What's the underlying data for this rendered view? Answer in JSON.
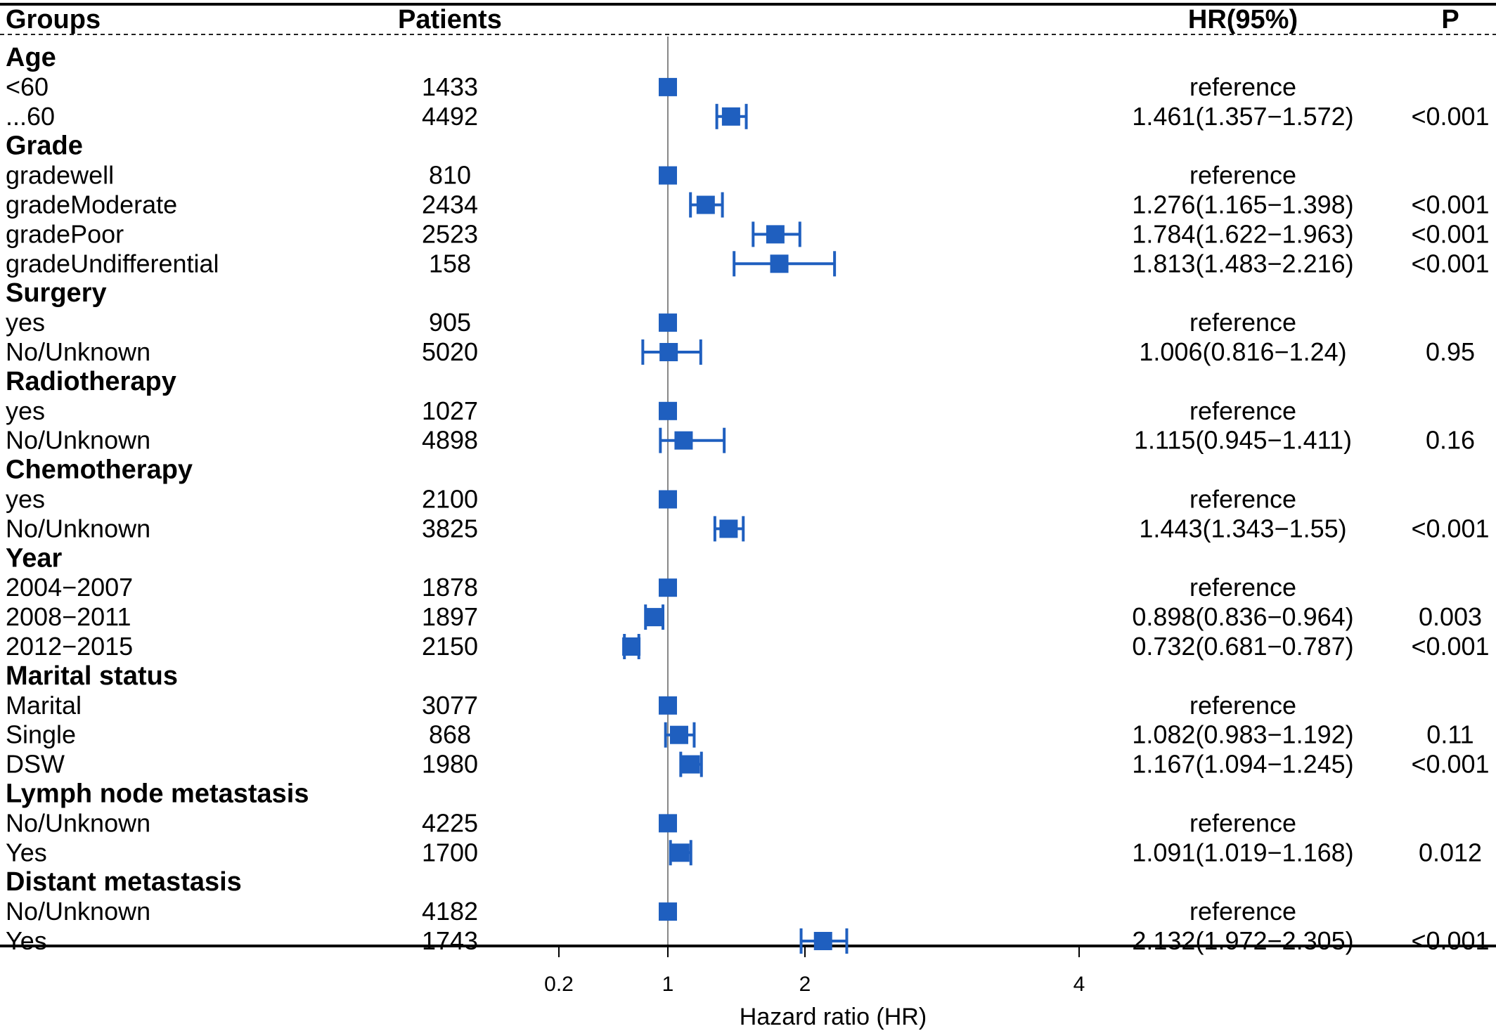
{
  "header": {
    "groups": "Groups",
    "patients": "Patients",
    "hr": "HR(95%)",
    "p": "P"
  },
  "chart_data": {
    "type": "forest",
    "title": "",
    "xlabel": "Hazard ratio (HR)",
    "x_ticks": [
      0.2,
      1,
      2,
      4
    ],
    "reference_line": 1,
    "colors": {
      "marker": "#1f5fbf",
      "reference_line": "#888888",
      "rules": "#000000"
    },
    "rows": [
      {
        "kind": "group",
        "label": "Age"
      },
      {
        "kind": "item",
        "label": "<60",
        "n": "1433",
        "hr_text": "reference",
        "p": "",
        "hr": 1,
        "lo": null,
        "hi": null
      },
      {
        "kind": "item",
        "label": "...60",
        "n": "4492",
        "hr_text": "1.461(1.357−1.572)",
        "p": "<0.001",
        "hr": 1.461,
        "lo": 1.357,
        "hi": 1.572
      },
      {
        "kind": "group",
        "label": "Grade"
      },
      {
        "kind": "item",
        "label": "gradewell",
        "n": "810",
        "hr_text": "reference",
        "p": "",
        "hr": 1,
        "lo": null,
        "hi": null
      },
      {
        "kind": "item",
        "label": "gradeModerate",
        "n": "2434",
        "hr_text": "1.276(1.165−1.398)",
        "p": "<0.001",
        "hr": 1.276,
        "lo": 1.165,
        "hi": 1.398
      },
      {
        "kind": "item",
        "label": "gradePoor",
        "n": "2523",
        "hr_text": "1.784(1.622−1.963)",
        "p": "<0.001",
        "hr": 1.784,
        "lo": 1.622,
        "hi": 1.963
      },
      {
        "kind": "item",
        "label": "gradeUndifferential",
        "n": "158",
        "hr_text": "1.813(1.483−2.216)",
        "p": "<0.001",
        "hr": 1.813,
        "lo": 1.483,
        "hi": 2.216
      },
      {
        "kind": "group",
        "label": "Surgery"
      },
      {
        "kind": "item",
        "label": "yes",
        "n": "905",
        "hr_text": "reference",
        "p": "",
        "hr": 1,
        "lo": null,
        "hi": null
      },
      {
        "kind": "item",
        "label": "No/Unknown",
        "n": "5020",
        "hr_text": "1.006(0.816−1.24)",
        "p": "0.95",
        "hr": 1.006,
        "lo": 0.816,
        "hi": 1.24
      },
      {
        "kind": "group",
        "label": "Radiotherapy"
      },
      {
        "kind": "item",
        "label": "yes",
        "n": "1027",
        "hr_text": "reference",
        "p": "",
        "hr": 1,
        "lo": null,
        "hi": null
      },
      {
        "kind": "item",
        "label": "No/Unknown",
        "n": "4898",
        "hr_text": "1.115(0.945−1.411)",
        "p": "0.16",
        "hr": 1.115,
        "lo": 0.945,
        "hi": 1.411
      },
      {
        "kind": "group",
        "label": "Chemotherapy"
      },
      {
        "kind": "item",
        "label": "yes",
        "n": "2100",
        "hr_text": "reference",
        "p": "",
        "hr": 1,
        "lo": null,
        "hi": null
      },
      {
        "kind": "item",
        "label": "No/Unknown",
        "n": "3825",
        "hr_text": "1.443(1.343−1.55)",
        "p": "<0.001",
        "hr": 1.443,
        "lo": 1.343,
        "hi": 1.55
      },
      {
        "kind": "group",
        "label": "Year"
      },
      {
        "kind": "item",
        "label": "2004−2007",
        "n": "1878",
        "hr_text": "reference",
        "p": "",
        "hr": 1,
        "lo": null,
        "hi": null
      },
      {
        "kind": "item",
        "label": "2008−2011",
        "n": "1897",
        "hr_text": "0.898(0.836−0.964)",
        "p": "0.003",
        "hr": 0.898,
        "lo": 0.836,
        "hi": 0.964
      },
      {
        "kind": "item",
        "label": "2012−2015",
        "n": "2150",
        "hr_text": "0.732(0.681−0.787)",
        "p": "<0.001",
        "hr": 0.732,
        "lo": 0.681,
        "hi": 0.787
      },
      {
        "kind": "group",
        "label": "Marital status"
      },
      {
        "kind": "item",
        "label": "Marital",
        "n": "3077",
        "hr_text": "reference",
        "p": "",
        "hr": 1,
        "lo": null,
        "hi": null
      },
      {
        "kind": "item",
        "label": "Single",
        "n": "868",
        "hr_text": "1.082(0.983−1.192)",
        "p": "0.11",
        "hr": 1.082,
        "lo": 0.983,
        "hi": 1.192
      },
      {
        "kind": "item",
        "label": "DSW",
        "n": "1980",
        "hr_text": "1.167(1.094−1.245)",
        "p": "<0.001",
        "hr": 1.167,
        "lo": 1.094,
        "hi": 1.245
      },
      {
        "kind": "group",
        "label": "Lymph node metastasis"
      },
      {
        "kind": "item",
        "label": "No/Unknown",
        "n": "4225",
        "hr_text": "reference",
        "p": "",
        "hr": 1,
        "lo": null,
        "hi": null
      },
      {
        "kind": "item",
        "label": "Yes",
        "n": "1700",
        "hr_text": "1.091(1.019−1.168)",
        "p": "0.012",
        "hr": 1.091,
        "lo": 1.019,
        "hi": 1.168
      },
      {
        "kind": "group",
        "label": "Distant metastasis"
      },
      {
        "kind": "item",
        "label": "No/Unknown",
        "n": "4182",
        "hr_text": "reference",
        "p": "",
        "hr": 1,
        "lo": null,
        "hi": null
      },
      {
        "kind": "item",
        "label": "Yes",
        "n": "1743",
        "hr_text": "2.132(1.972−2.305)",
        "p": "<0.001",
        "hr": 2.132,
        "lo": 1.972,
        "hi": 2.305
      }
    ]
  }
}
